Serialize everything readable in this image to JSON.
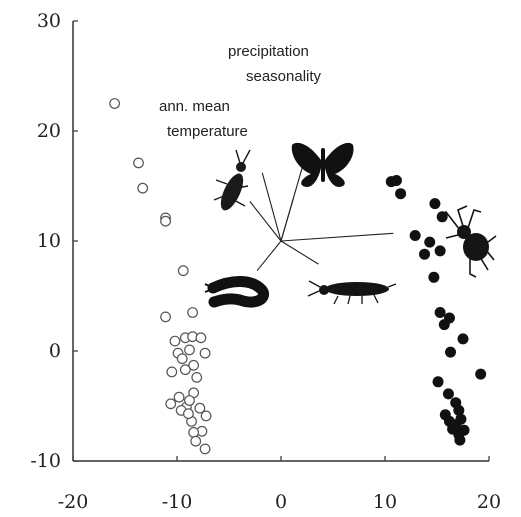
{
  "chart_data": {
    "type": "scatter",
    "title": "",
    "xlabel": "",
    "ylabel": "",
    "xlim": [
      -20,
      20
    ],
    "ylim": [
      -10,
      30
    ],
    "xticks": [
      "-20",
      "-10",
      "0",
      "10",
      "20"
    ],
    "yticks": [
      "-10",
      "0",
      "10",
      "20",
      "30"
    ],
    "grid": false,
    "series": [
      {
        "marker": "open-circle",
        "color": "#555555",
        "points": [
          [
            -16,
            22.5
          ],
          [
            -13.7,
            17.1
          ],
          [
            -13.3,
            14.8
          ],
          [
            -11.1,
            12.1
          ],
          [
            -11.1,
            11.8
          ],
          [
            -9.4,
            7.3
          ],
          [
            -11.1,
            3.1
          ],
          [
            -8.5,
            3.5
          ],
          [
            -10.2,
            0.9
          ],
          [
            -9.2,
            1.2
          ],
          [
            -8.5,
            1.3
          ],
          [
            -7.7,
            1.2
          ],
          [
            -9.9,
            -0.2
          ],
          [
            -8.8,
            0.1
          ],
          [
            -7.3,
            -0.2
          ],
          [
            -9.5,
            -0.7
          ],
          [
            -8.4,
            -1.3
          ],
          [
            -10.5,
            -1.9
          ],
          [
            -9.2,
            -1.7
          ],
          [
            -8.1,
            -2.4
          ],
          [
            -8.4,
            -3.8
          ],
          [
            -9.8,
            -4.2
          ],
          [
            -10.6,
            -4.8
          ],
          [
            -9.1,
            -5.1
          ],
          [
            -8.8,
            -4.5
          ],
          [
            -7.8,
            -5.2
          ],
          [
            -7.2,
            -5.9
          ],
          [
            -9.6,
            -5.4
          ],
          [
            -8.6,
            -6.4
          ],
          [
            -7.6,
            -7.3
          ],
          [
            -8.4,
            -7.4
          ],
          [
            -8.2,
            -8.2
          ],
          [
            -7.3,
            -8.9
          ],
          [
            -8.9,
            -5.7
          ]
        ]
      },
      {
        "marker": "filled-circle",
        "color": "#111111",
        "points": [
          [
            10.6,
            15.4
          ],
          [
            11.1,
            15.5
          ],
          [
            11.5,
            14.3
          ],
          [
            14.8,
            13.4
          ],
          [
            15.5,
            12.2
          ],
          [
            12.9,
            10.5
          ],
          [
            14.3,
            9.9
          ],
          [
            15.3,
            9.1
          ],
          [
            13.8,
            8.8
          ],
          [
            14.7,
            6.7
          ],
          [
            15.3,
            3.5
          ],
          [
            15.7,
            2.4
          ],
          [
            16.2,
            3.0
          ],
          [
            17.5,
            1.1
          ],
          [
            16.3,
            -0.1
          ],
          [
            19.2,
            -2.1
          ],
          [
            15.1,
            -2.8
          ],
          [
            16.1,
            -3.9
          ],
          [
            16.8,
            -4.7
          ],
          [
            17.1,
            -5.4
          ],
          [
            17.3,
            -6.2
          ],
          [
            16.8,
            -6.7
          ],
          [
            17.6,
            -7.2
          ],
          [
            17.1,
            -7.6
          ],
          [
            16.5,
            -7.1
          ],
          [
            17.2,
            -8.1
          ],
          [
            15.8,
            -5.8
          ],
          [
            16.2,
            -6.4
          ]
        ]
      }
    ],
    "vectors": [
      {
        "name": "precipitation seasonality",
        "to": [
          2.2,
          17.2
        ]
      },
      {
        "name": "ann. mean temperature",
        "to": [
          -1.8,
          16.2
        ]
      },
      {
        "name": "",
        "to": [
          -3.0,
          13.6
        ]
      },
      {
        "name": "",
        "to": [
          1.2,
          13.9
        ]
      },
      {
        "name": "",
        "to": [
          10.8,
          10.7
        ]
      },
      {
        "name": "",
        "to": [
          -2.3,
          7.3
        ]
      },
      {
        "name": "",
        "to": [
          3.6,
          7.9
        ]
      }
    ],
    "annotations": {
      "precipitation_line1": "precipitation",
      "precipitation_line2": "seasonality",
      "temperature_line1": "ann. mean",
      "temperature_line2": "temperature"
    },
    "icons": [
      "beetle-icon",
      "butterfly-icon",
      "spider-icon",
      "centipede-icon",
      "isopod-icon"
    ]
  }
}
